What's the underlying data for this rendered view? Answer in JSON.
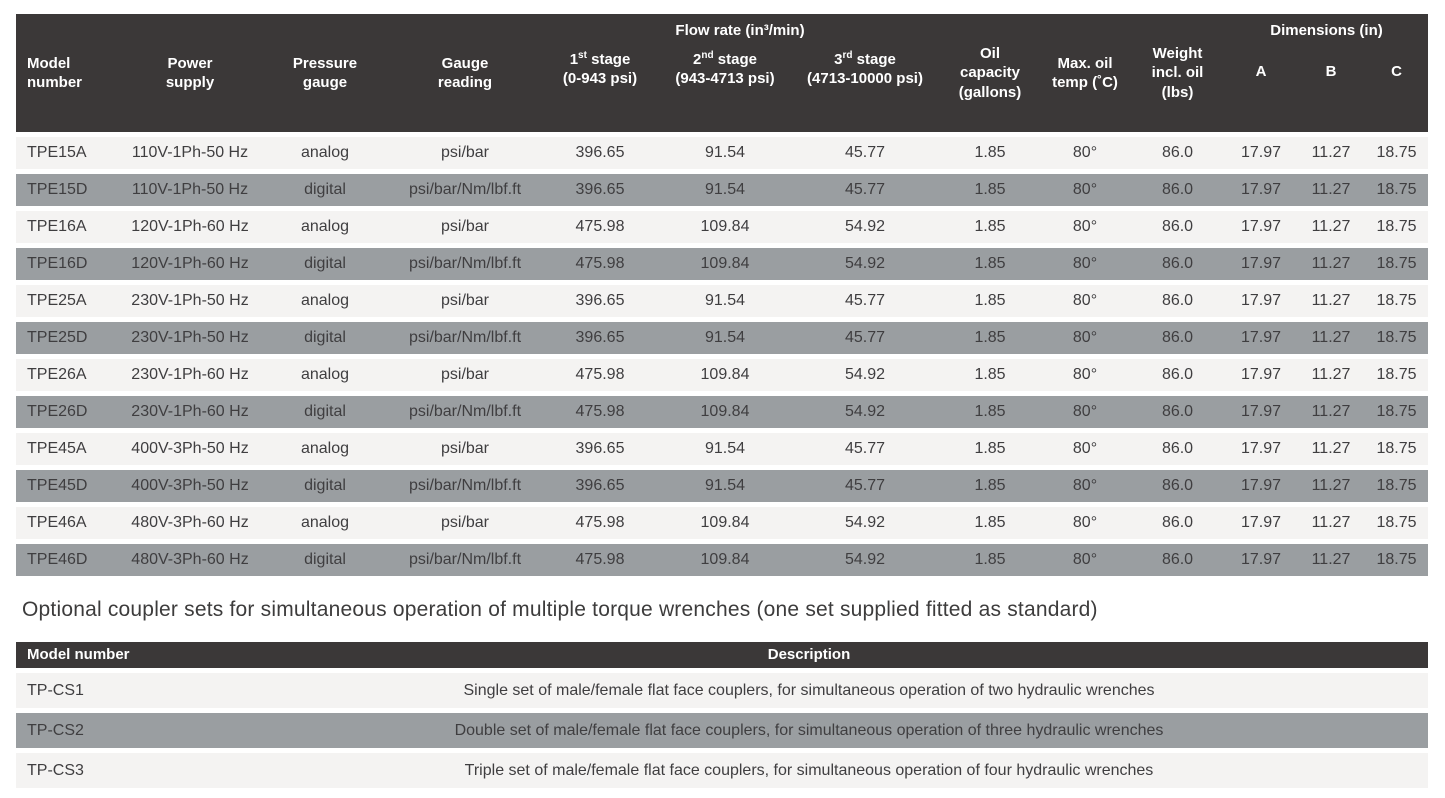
{
  "colors": {
    "header_bg": "#3b3838",
    "header_text": "#ffffff",
    "row_light": "#f4f3f2",
    "row_gray": "#9a9ea1",
    "body_text": "#3f3e40"
  },
  "main_table": {
    "headers": {
      "model": "Model number",
      "power": "Power supply",
      "pressure": "Pressure gauge",
      "gauge_reading": "Gauge reading",
      "flow_group": "Flow rate (in³/min)",
      "stages": [
        {
          "num": "1",
          "sup": "st",
          "label": " stage",
          "range": "(0-943 psi)"
        },
        {
          "num": "2",
          "sup": "nd",
          "label": " stage",
          "range": "(943-4713 psi)"
        },
        {
          "num": "3",
          "sup": "rd",
          "label": " stage",
          "range": "(4713-10000 psi)"
        }
      ],
      "oil_capacity": "Oil capacity (gallons)",
      "max_oil_temp": "Max. oil temp (˚C)",
      "weight": "Weight incl. oil (lbs)",
      "dimensions_group": "Dimensions (in)",
      "dims": [
        "A",
        "B",
        "C"
      ]
    },
    "rows": [
      [
        "TPE15A",
        "110V-1Ph-50 Hz",
        "analog",
        "psi/bar",
        "396.65",
        "91.54",
        "45.77",
        "1.85",
        "80°",
        "86.0",
        "17.97",
        "11.27",
        "18.75"
      ],
      [
        "TPE15D",
        "110V-1Ph-50 Hz",
        "digital",
        "psi/bar/Nm/lbf.ft",
        "396.65",
        "91.54",
        "45.77",
        "1.85",
        "80°",
        "86.0",
        "17.97",
        "11.27",
        "18.75"
      ],
      [
        "TPE16A",
        "120V-1Ph-60 Hz",
        "analog",
        "psi/bar",
        "475.98",
        "109.84",
        "54.92",
        "1.85",
        "80°",
        "86.0",
        "17.97",
        "11.27",
        "18.75"
      ],
      [
        "TPE16D",
        "120V-1Ph-60 Hz",
        "digital",
        "psi/bar/Nm/lbf.ft",
        "475.98",
        "109.84",
        "54.92",
        "1.85",
        "80°",
        "86.0",
        "17.97",
        "11.27",
        "18.75"
      ],
      [
        "TPE25A",
        "230V-1Ph-50 Hz",
        "analog",
        "psi/bar",
        "396.65",
        "91.54",
        "45.77",
        "1.85",
        "80°",
        "86.0",
        "17.97",
        "11.27",
        "18.75"
      ],
      [
        "TPE25D",
        "230V-1Ph-50 Hz",
        "digital",
        "psi/bar/Nm/lbf.ft",
        "396.65",
        "91.54",
        "45.77",
        "1.85",
        "80°",
        "86.0",
        "17.97",
        "11.27",
        "18.75"
      ],
      [
        "TPE26A",
        "230V-1Ph-60 Hz",
        "analog",
        "psi/bar",
        "475.98",
        "109.84",
        "54.92",
        "1.85",
        "80°",
        "86.0",
        "17.97",
        "11.27",
        "18.75"
      ],
      [
        "TPE26D",
        "230V-1Ph-60 Hz",
        "digital",
        "psi/bar/Nm/lbf.ft",
        "475.98",
        "109.84",
        "54.92",
        "1.85",
        "80°",
        "86.0",
        "17.97",
        "11.27",
        "18.75"
      ],
      [
        "TPE45A",
        "400V-3Ph-50 Hz",
        "analog",
        "psi/bar",
        "396.65",
        "91.54",
        "45.77",
        "1.85",
        "80°",
        "86.0",
        "17.97",
        "11.27",
        "18.75"
      ],
      [
        "TPE45D",
        "400V-3Ph-50 Hz",
        "digital",
        "psi/bar/Nm/lbf.ft",
        "396.65",
        "91.54",
        "45.77",
        "1.85",
        "80°",
        "86.0",
        "17.97",
        "11.27",
        "18.75"
      ],
      [
        "TPE46A",
        "480V-3Ph-60 Hz",
        "analog",
        "psi/bar",
        "475.98",
        "109.84",
        "54.92",
        "1.85",
        "80°",
        "86.0",
        "17.97",
        "11.27",
        "18.75"
      ],
      [
        "TPE46D",
        "480V-3Ph-60 Hz",
        "digital",
        "psi/bar/Nm/lbf.ft",
        "475.98",
        "109.84",
        "54.92",
        "1.85",
        "80°",
        "86.0",
        "17.97",
        "11.27",
        "18.75"
      ]
    ]
  },
  "caption": "Optional coupler sets for simultaneous operation of multiple torque wrenches (one set supplied fitted as standard)",
  "coupler_table": {
    "headers": {
      "model": "Model number",
      "description": "Description"
    },
    "rows": [
      {
        "model": "TP-CS1",
        "description": "Single set of male/female flat face couplers, for simultaneous operation of two hydraulic wrenches"
      },
      {
        "model": "TP-CS2",
        "description": "Double set of male/female flat face couplers, for simultaneous operation of three hydraulic wrenches"
      },
      {
        "model": "TP-CS3",
        "description": "Triple set of male/female flat face couplers, for simultaneous operation of four hydraulic wrenches"
      }
    ]
  }
}
